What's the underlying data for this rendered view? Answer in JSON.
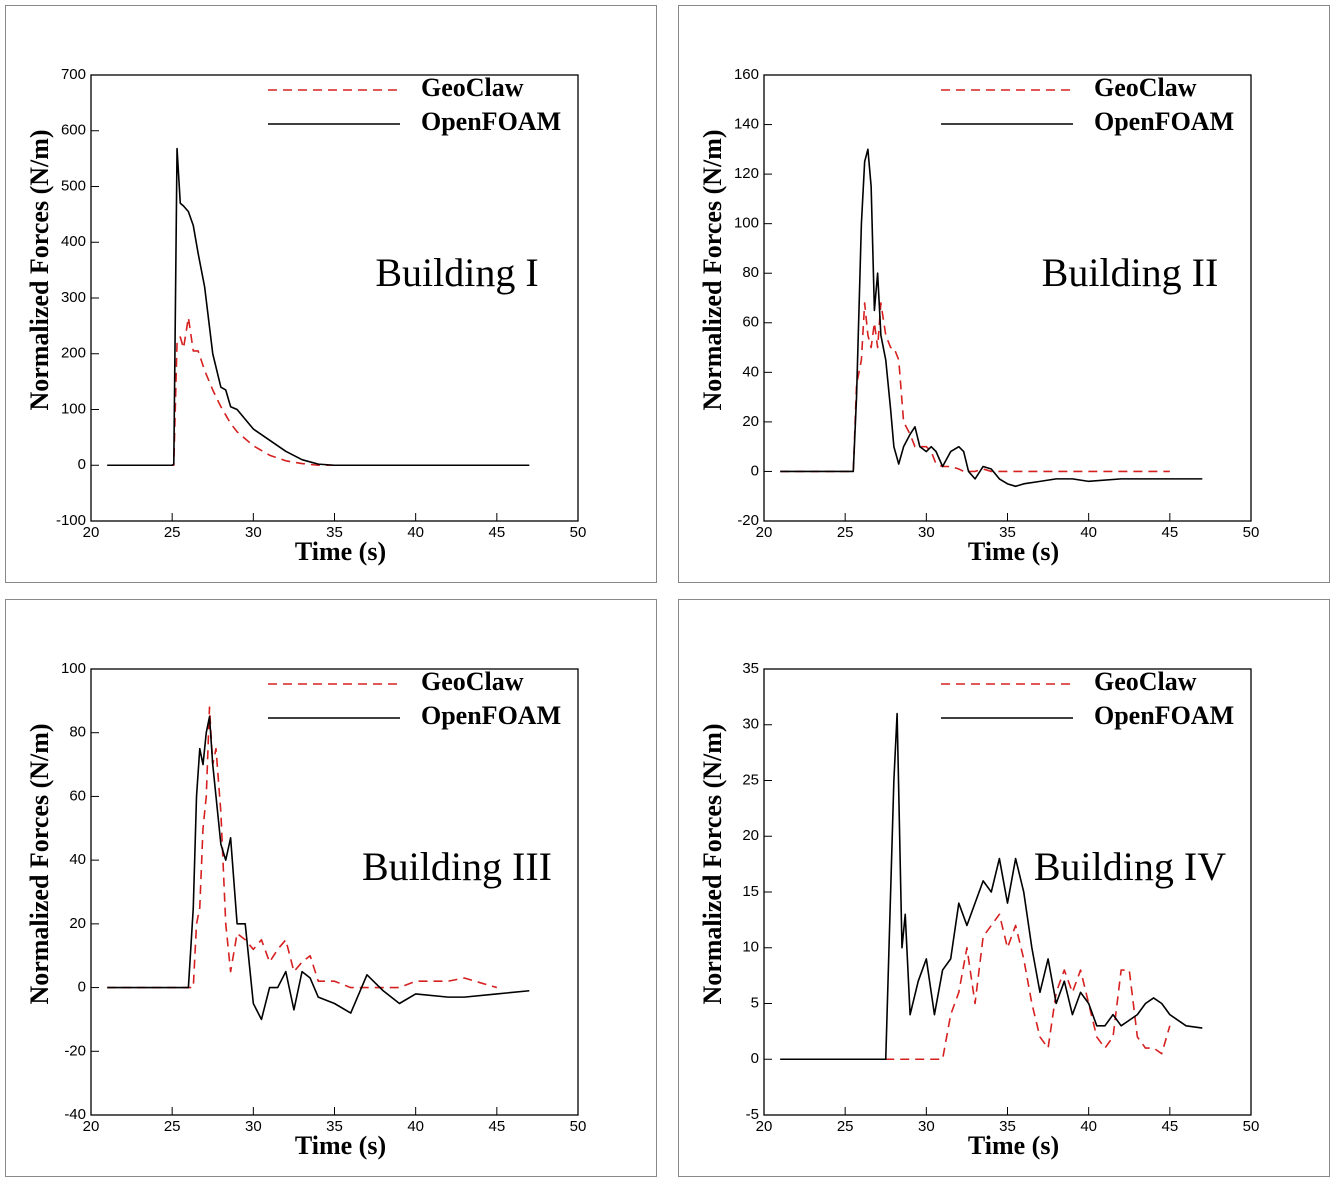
{
  "chart_data": [
    {
      "type": "line",
      "annotation": "Building I",
      "xlabel": "Time (s)",
      "ylabel": "Normalized Forces (N/m)",
      "xlim": [
        20,
        50
      ],
      "xticks": [
        20,
        25,
        30,
        35,
        40,
        45,
        50
      ],
      "ylim": [
        -100,
        700
      ],
      "yticks": [
        -100,
        0,
        100,
        200,
        300,
        400,
        500,
        600,
        700
      ],
      "legend": "upper right",
      "x": [
        21,
        25,
        25.1,
        25.3,
        25.5,
        25.7,
        26,
        26.3,
        26.6,
        27,
        27.5,
        28,
        28.3,
        28.6,
        29,
        30,
        31,
        32,
        33,
        34,
        35,
        37,
        39,
        40,
        42,
        45,
        47
      ],
      "series": [
        {
          "name": "GeoClaw",
          "color": "#d62020",
          "linestyle": "dashed",
          "values": [
            0,
            0,
            0,
            220,
            230,
            210,
            265,
            205,
            205,
            170,
            135,
            105,
            90,
            75,
            60,
            35,
            18,
            8,
            3,
            0,
            0,
            0,
            0,
            0,
            null,
            null,
            null
          ]
        },
        {
          "name": "OpenFOAM",
          "color": "#000000",
          "linestyle": "solid",
          "values": [
            0,
            0,
            2,
            568,
            470,
            465,
            455,
            430,
            380,
            320,
            200,
            140,
            135,
            105,
            100,
            65,
            45,
            25,
            10,
            2,
            0,
            0,
            0,
            0,
            0,
            0,
            0
          ]
        }
      ]
    },
    {
      "type": "line",
      "annotation": "Building II",
      "xlabel": "Time (s)",
      "ylabel": "Normalized Forces (N/m)",
      "xlim": [
        20,
        50
      ],
      "xticks": [
        20,
        25,
        30,
        35,
        40,
        45,
        50
      ],
      "ylim": [
        -20,
        160
      ],
      "yticks": [
        -20,
        0,
        20,
        40,
        60,
        80,
        100,
        120,
        140,
        160
      ],
      "legend": "upper right",
      "x": [
        21,
        25.5,
        25.7,
        26,
        26.2,
        26.4,
        26.6,
        26.8,
        27,
        27.2,
        27.5,
        27.8,
        28,
        28.3,
        28.6,
        29,
        29.3,
        29.6,
        30,
        30.3,
        30.6,
        31,
        31.5,
        32,
        32.3,
        32.6,
        33,
        33.5,
        34,
        34.5,
        35,
        35.5,
        36,
        37,
        38,
        39,
        40,
        42,
        45,
        47
      ],
      "series": [
        {
          "name": "GeoClaw",
          "color": "#d62020",
          "linestyle": "dashed",
          "values": [
            0,
            0,
            35,
            45,
            68,
            55,
            50,
            60,
            50,
            68,
            55,
            50,
            50,
            45,
            20,
            15,
            10,
            10,
            10,
            8,
            3,
            2,
            2,
            1,
            0,
            0,
            0,
            1,
            0,
            0,
            0,
            0,
            0,
            0,
            0,
            0,
            0,
            0,
            0,
            null
          ]
        },
        {
          "name": "OpenFOAM",
          "color": "#000000",
          "linestyle": "solid",
          "values": [
            0,
            0,
            30,
            100,
            125,
            130,
            115,
            65,
            80,
            55,
            45,
            25,
            10,
            3,
            10,
            15,
            18,
            10,
            8,
            10,
            8,
            2,
            8,
            10,
            8,
            0,
            -3,
            2,
            1,
            -3,
            -5,
            -6,
            -5,
            -4,
            -3,
            -3,
            -4,
            -3,
            -3,
            -3
          ]
        }
      ]
    },
    {
      "type": "line",
      "annotation": "Building III",
      "xlabel": "Time (s)",
      "ylabel": "Normalized Forces (N/m)",
      "xlim": [
        20,
        50
      ],
      "xticks": [
        20,
        25,
        30,
        35,
        40,
        45,
        50
      ],
      "ylim": [
        -40,
        100
      ],
      "yticks": [
        -40,
        -20,
        0,
        20,
        40,
        60,
        80,
        100
      ],
      "legend": "upper right",
      "x": [
        21,
        26,
        26.3,
        26.5,
        26.7,
        26.9,
        27.1,
        27.3,
        27.5,
        27.7,
        28,
        28.3,
        28.6,
        29,
        29.5,
        30,
        30.5,
        31,
        31.5,
        32,
        32.5,
        33,
        33.5,
        34,
        35,
        36,
        37,
        38,
        39,
        40,
        42,
        43,
        45,
        47
      ],
      "series": [
        {
          "name": "GeoClaw",
          "color": "#d62020",
          "linestyle": "dashed",
          "values": [
            0,
            0,
            0,
            20,
            25,
            50,
            60,
            88,
            70,
            75,
            55,
            20,
            5,
            17,
            15,
            12,
            15,
            8,
            12,
            15,
            5,
            8,
            10,
            2,
            2,
            0,
            0,
            0,
            0,
            2,
            2,
            3,
            0,
            null
          ]
        },
        {
          "name": "OpenFOAM",
          "color": "#000000",
          "linestyle": "solid",
          "values": [
            0,
            0,
            25,
            60,
            75,
            70,
            80,
            85,
            70,
            60,
            45,
            40,
            47,
            20,
            20,
            -5,
            -10,
            0,
            0,
            5,
            -7,
            5,
            3,
            -3,
            -5,
            -8,
            4,
            -1,
            -5,
            -2,
            -3,
            -3,
            -2,
            -1
          ]
        }
      ]
    },
    {
      "type": "line",
      "annotation": "Building IV",
      "xlabel": "Time (s)",
      "ylabel": "Normalized Forces (N/m)",
      "xlim": [
        20,
        50
      ],
      "xticks": [
        20,
        25,
        30,
        35,
        40,
        45,
        50
      ],
      "ylim": [
        -5,
        35
      ],
      "yticks": [
        -5,
        0,
        5,
        10,
        15,
        20,
        25,
        30,
        35
      ],
      "legend": "upper right",
      "x": [
        21,
        27.5,
        28,
        28.2,
        28.5,
        28.7,
        29,
        29.5,
        30,
        30.5,
        31,
        31.5,
        32,
        32.5,
        33,
        33.5,
        34,
        34.5,
        35,
        35.5,
        36,
        36.5,
        37,
        37.5,
        38,
        38.5,
        39,
        39.5,
        40,
        40.5,
        41,
        41.5,
        42,
        42.5,
        43,
        43.5,
        44,
        44.5,
        45,
        46,
        47
      ],
      "series": [
        {
          "name": "GeoClaw",
          "color": "#d62020",
          "linestyle": "dashed",
          "values": [
            0,
            0,
            0,
            0,
            0,
            0,
            0,
            0,
            0,
            0,
            0,
            4,
            6,
            10,
            5,
            11,
            12,
            13,
            10,
            12,
            9,
            5,
            2,
            1,
            6,
            8,
            6,
            8,
            5,
            2,
            1,
            2,
            8,
            8,
            2,
            1,
            1,
            0.5,
            3,
            null,
            null
          ]
        },
        {
          "name": "OpenFOAM",
          "color": "#000000",
          "linestyle": "solid",
          "values": [
            0,
            0,
            25,
            31,
            10,
            13,
            4,
            7,
            9,
            4,
            8,
            9,
            14,
            12,
            14,
            16,
            15,
            18,
            14,
            18,
            15,
            10,
            6,
            9,
            5,
            7,
            4,
            6,
            5,
            3,
            3,
            4,
            3,
            3.5,
            4,
            5,
            5.5,
            5,
            4,
            3,
            2.8
          ]
        }
      ]
    }
  ]
}
